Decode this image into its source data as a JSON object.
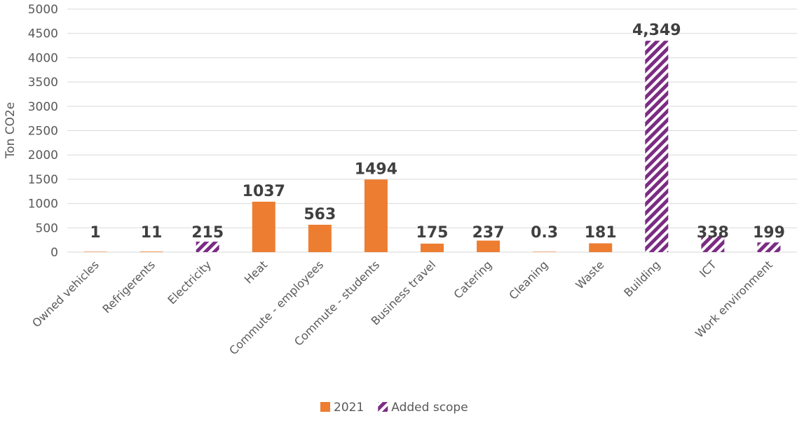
{
  "chart_data": {
    "type": "bar",
    "ylabel": "Ton CO2e",
    "ylim": [
      0,
      5000
    ],
    "yticks": [
      0,
      500,
      1000,
      1500,
      2000,
      2500,
      3000,
      3500,
      4000,
      4500,
      5000
    ],
    "grid": true,
    "legend_position": "bottom",
    "categories": [
      "Owned vehicles",
      "Refrigerents",
      "Electricity",
      "Heat",
      "Commute - employees",
      "Commute - students",
      "Business travel",
      "Catering",
      "Cleaning",
      "Waste",
      "Building",
      "ICT",
      "Work environment"
    ],
    "values": [
      1,
      11,
      215,
      1037,
      563,
      1494,
      175,
      237,
      0.3,
      181,
      4349,
      338,
      199
    ],
    "data_labels": [
      "1",
      "11",
      "215",
      "1037",
      "563",
      "1494",
      "175",
      "237",
      "0.3",
      "181",
      "4,349",
      "338",
      "199"
    ],
    "series_membership": [
      "2021",
      "2021",
      "Added scope",
      "2021",
      "2021",
      "2021",
      "2021",
      "2021",
      "2021",
      "2021",
      "Added scope",
      "Added scope",
      "Added scope"
    ],
    "series": [
      {
        "name": "2021",
        "color": "#ed7d31",
        "pattern": "solid"
      },
      {
        "name": "Added scope",
        "color": "#7b2c83",
        "pattern": "diagonal-stripes"
      }
    ]
  }
}
